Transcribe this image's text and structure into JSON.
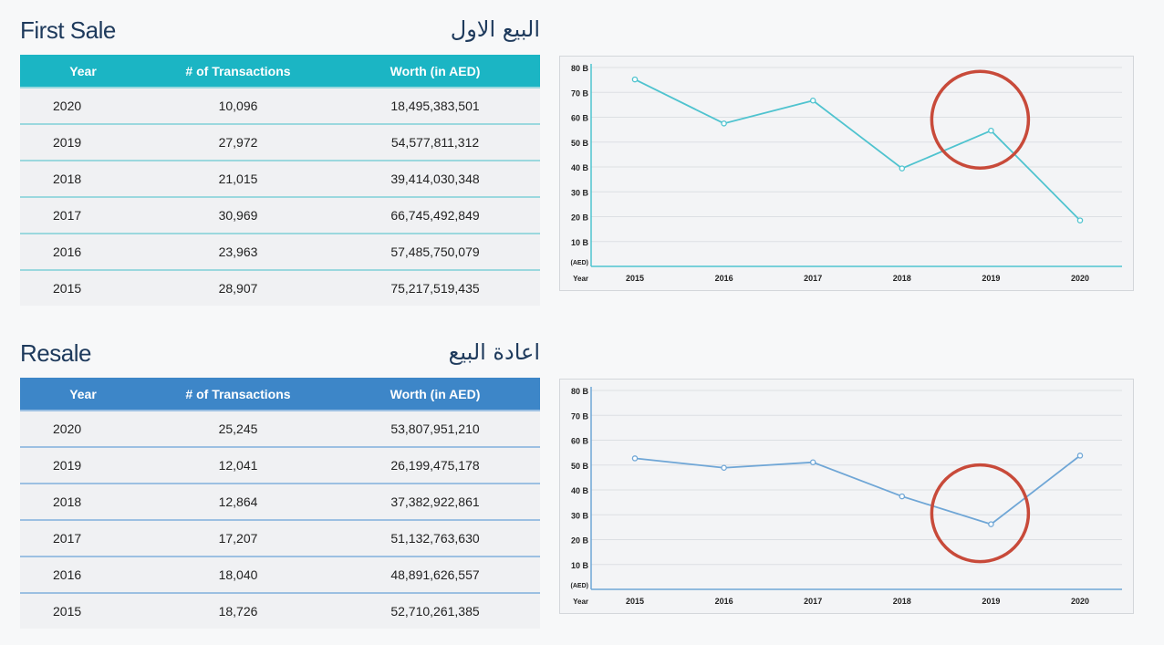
{
  "first_sale": {
    "title_en": "First Sale",
    "title_ar": "البيع الاول",
    "columns": [
      "Year",
      "# of Transactions",
      "Worth (in AED)"
    ],
    "rows": [
      {
        "year": "2020",
        "transactions": "10,096",
        "worth": "18,495,383,501"
      },
      {
        "year": "2019",
        "transactions": "27,972",
        "worth": "54,577,811,312"
      },
      {
        "year": "2018",
        "transactions": "21,015",
        "worth": "39,414,030,348"
      },
      {
        "year": "2017",
        "transactions": "30,969",
        "worth": "66,745,492,849"
      },
      {
        "year": "2016",
        "transactions": "23,963",
        "worth": "57,485,750,079"
      },
      {
        "year": "2015",
        "transactions": "28,907",
        "worth": "75,217,519,435"
      }
    ]
  },
  "resale": {
    "title_en": "Resale",
    "title_ar": "اعادة البيع",
    "columns": [
      "Year",
      "# of Transactions",
      "Worth (in AED)"
    ],
    "rows": [
      {
        "year": "2020",
        "transactions": "25,245",
        "worth": "53,807,951,210"
      },
      {
        "year": "2019",
        "transactions": "12,041",
        "worth": "26,199,475,178"
      },
      {
        "year": "2018",
        "transactions": "12,864",
        "worth": "37,382,922,861"
      },
      {
        "year": "2017",
        "transactions": "17,207",
        "worth": "51,132,763,630"
      },
      {
        "year": "2016",
        "transactions": "18,040",
        "worth": "48,891,626,557"
      },
      {
        "year": "2015",
        "transactions": "18,726",
        "worth": "52,710,261,385"
      }
    ]
  },
  "chart_data": [
    {
      "type": "line",
      "categories": [
        "2015",
        "2016",
        "2017",
        "2018",
        "2019",
        "2020"
      ],
      "values": [
        75.2,
        57.5,
        66.7,
        39.4,
        54.6,
        18.5
      ],
      "ylim": [
        0,
        80
      ],
      "yticks": [
        "80 B",
        "70 B",
        "60 B",
        "50 B",
        "40 B",
        "30 B",
        "20 B",
        "10 B"
      ],
      "y_unit_label": "(AED)",
      "x_label": "Year",
      "color": "#4fc3cf",
      "highlight": "2019",
      "highlight_color": "#c84a3a",
      "grid": true
    },
    {
      "type": "line",
      "categories": [
        "2015",
        "2016",
        "2017",
        "2018",
        "2019",
        "2020"
      ],
      "values": [
        52.7,
        48.9,
        51.1,
        37.4,
        26.2,
        53.8
      ],
      "ylim": [
        0,
        80
      ],
      "yticks": [
        "80 B",
        "70 B",
        "60 B",
        "50 B",
        "40 B",
        "30 B",
        "20 B",
        "10 B"
      ],
      "y_unit_label": "(AED)",
      "x_label": "Year",
      "color": "#6fa6d6",
      "highlight": "2019",
      "highlight_color": "#c84a3a",
      "grid": true
    }
  ]
}
